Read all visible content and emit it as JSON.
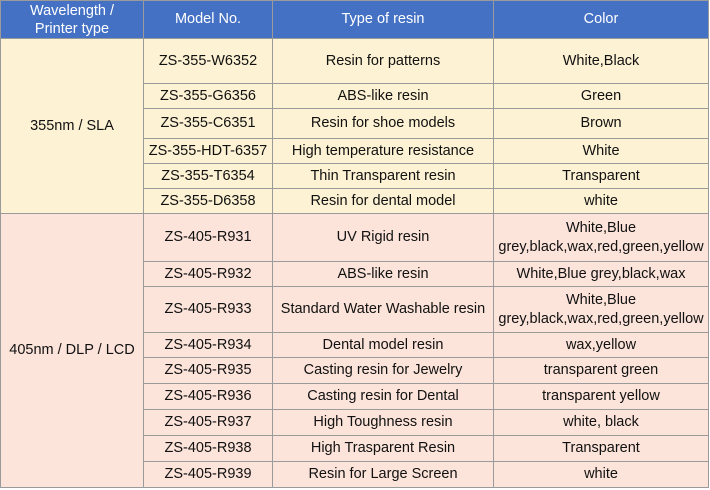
{
  "headers": {
    "wavelength_line1": "Wavelength /",
    "wavelength_line2": "Printer type",
    "model": "Model No.",
    "type": "Type of resin",
    "color": "Color"
  },
  "groups": [
    {
      "label": "355nm / SLA",
      "rows": [
        {
          "model": "ZS-355-W6352",
          "type": "Resin for patterns",
          "color": "White,Black"
        },
        {
          "model": "ZS-355-G6356",
          "type": "ABS-like resin",
          "color": "Green"
        },
        {
          "model": "ZS-355-C6351",
          "type": "Resin for shoe models",
          "color": "Brown"
        },
        {
          "model": "ZS-355-HDT-6357",
          "type": "High temperature resistance",
          "color": "White"
        },
        {
          "model": "ZS-355-T6354",
          "type": "Thin Transparent resin",
          "color": "Transparent"
        },
        {
          "model": "ZS-355-D6358",
          "type": "Resin for dental model",
          "color": "white"
        }
      ]
    },
    {
      "label": "405nm / DLP / LCD",
      "rows": [
        {
          "model": "ZS-405-R931",
          "type": "UV Rigid resin",
          "color_line1": "White,Blue",
          "color_line2": "grey,black,wax,red,green,yellow"
        },
        {
          "model": "ZS-405-R932",
          "type": "ABS-like resin",
          "color": "White,Blue grey,black,wax"
        },
        {
          "model": "ZS-405-R933",
          "type": "Standard Water Washable resin",
          "color_line1": "White,Blue",
          "color_line2": "grey,black,wax,red,green,yellow"
        },
        {
          "model": "ZS-405-R934",
          "type": "Dental model resin",
          "color": "wax,yellow"
        },
        {
          "model": "ZS-405-R935",
          "type": "Casting resin for Jewelry",
          "color": "transparent green"
        },
        {
          "model": "ZS-405-R936",
          "type": "Casting resin for Dental",
          "color": "transparent yellow"
        },
        {
          "model": "ZS-405-R937",
          "type": "High Toughness resin",
          "color": "white, black"
        },
        {
          "model": "ZS-405-R938",
          "type": "High Trasparent Resin",
          "color": "Transparent"
        },
        {
          "model": "ZS-405-R939",
          "type": "Resin for Large Screen",
          "color": "white"
        }
      ]
    }
  ],
  "colors": {
    "header_bg": "#4471c4",
    "header_text": "#ffffff",
    "sla_bg": "#fdf2d3",
    "dlp_bg": "#fce4da",
    "border": "#9a9a9a"
  }
}
